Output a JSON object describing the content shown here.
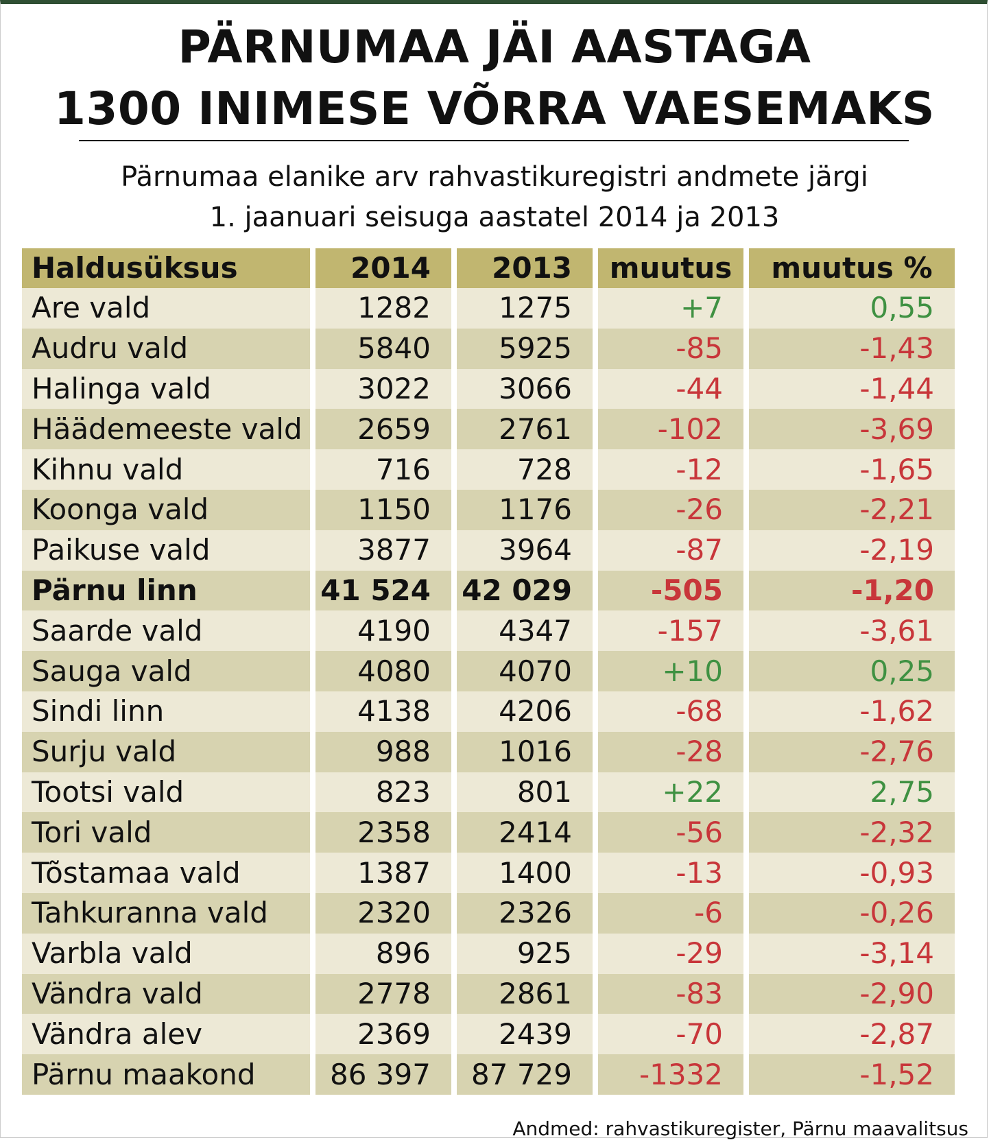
{
  "header": {
    "title_line1": "PÄRNUMAA JÄI AASTAGA",
    "title_line2": "1300 INIMESE VÕRRA VAESEMAKS",
    "subtitle_line1": "Pärnumaa elanike arv rahvastikuregistri andmete järgi",
    "subtitle_line2": "1. jaanuari seisuga aastatel 2014 ja 2013"
  },
  "colors": {
    "header_bg": "#c1b670",
    "row_dark": "#d7d3b0",
    "row_light": "#ede9d6",
    "positive": "#3f9142",
    "negative": "#c8363a",
    "top_bar": "#2f4f33"
  },
  "chart_data": {
    "type": "table",
    "title": "PÄRNUMAA JÄI AASTAGA 1300 INIMESE VÕRRA VAESEMAKS",
    "columns": [
      "Haldusüksus",
      "2014",
      "2013",
      "muutus",
      "muutus %"
    ],
    "rows": [
      {
        "name": "Are vald",
        "y2014": "1282",
        "y2013": "1275",
        "change": "+7",
        "pct": "0,55",
        "sign": "pos",
        "bold": false
      },
      {
        "name": "Audru vald",
        "y2014": "5840",
        "y2013": "5925",
        "change": "-85",
        "pct": "-1,43",
        "sign": "neg",
        "bold": false
      },
      {
        "name": "Halinga vald",
        "y2014": "3022",
        "y2013": "3066",
        "change": "-44",
        "pct": "-1,44",
        "sign": "neg",
        "bold": false
      },
      {
        "name": "Häädemeeste vald",
        "y2014": "2659",
        "y2013": "2761",
        "change": "-102",
        "pct": "-3,69",
        "sign": "neg",
        "bold": false
      },
      {
        "name": "Kihnu vald",
        "y2014": "716",
        "y2013": "728",
        "change": "-12",
        "pct": "-1,65",
        "sign": "neg",
        "bold": false
      },
      {
        "name": "Koonga vald",
        "y2014": "1150",
        "y2013": "1176",
        "change": "-26",
        "pct": "-2,21",
        "sign": "neg",
        "bold": false
      },
      {
        "name": "Paikuse vald",
        "y2014": "3877",
        "y2013": "3964",
        "change": "-87",
        "pct": "-2,19",
        "sign": "neg",
        "bold": false
      },
      {
        "name": "Pärnu linn",
        "y2014": "41 524",
        "y2013": "42 029",
        "change": "-505",
        "pct": "-1,20",
        "sign": "neg",
        "bold": true
      },
      {
        "name": "Saarde vald",
        "y2014": "4190",
        "y2013": "4347",
        "change": "-157",
        "pct": "-3,61",
        "sign": "neg",
        "bold": false
      },
      {
        "name": "Sauga vald",
        "y2014": "4080",
        "y2013": "4070",
        "change": "+10",
        "pct": "0,25",
        "sign": "pos",
        "bold": false
      },
      {
        "name": "Sindi linn",
        "y2014": "4138",
        "y2013": "4206",
        "change": "-68",
        "pct": "-1,62",
        "sign": "neg",
        "bold": false
      },
      {
        "name": "Surju vald",
        "y2014": "988",
        "y2013": "1016",
        "change": "-28",
        "pct": "-2,76",
        "sign": "neg",
        "bold": false
      },
      {
        "name": "Tootsi vald",
        "y2014": "823",
        "y2013": "801",
        "change": "+22",
        "pct": "2,75",
        "sign": "pos",
        "bold": false
      },
      {
        "name": "Tori vald",
        "y2014": "2358",
        "y2013": "2414",
        "change": "-56",
        "pct": "-2,32",
        "sign": "neg",
        "bold": false
      },
      {
        "name": "Tõstamaa vald",
        "y2014": "1387",
        "y2013": "1400",
        "change": "-13",
        "pct": "-0,93",
        "sign": "neg",
        "bold": false
      },
      {
        "name": "Tahkuranna vald",
        "y2014": "2320",
        "y2013": "2326",
        "change": "-6",
        "pct": "-0,26",
        "sign": "neg",
        "bold": false
      },
      {
        "name": "Varbla vald",
        "y2014": "896",
        "y2013": "925",
        "change": "-29",
        "pct": "-3,14",
        "sign": "neg",
        "bold": false
      },
      {
        "name": "Vändra vald",
        "y2014": "2778",
        "y2013": "2861",
        "change": "-83",
        "pct": "-2,90",
        "sign": "neg",
        "bold": false
      },
      {
        "name": "Vändra alev",
        "y2014": "2369",
        "y2013": "2439",
        "change": "-70",
        "pct": "-2,87",
        "sign": "neg",
        "bold": false
      },
      {
        "name": "Pärnu maakond",
        "y2014": "86 397",
        "y2013": "87 729",
        "change": "-1332",
        "pct": "-1,52",
        "sign": "neg",
        "bold": false
      }
    ]
  },
  "footer": {
    "source": "Andmed: rahvastikuregister, Pärnu maavalitsus"
  }
}
